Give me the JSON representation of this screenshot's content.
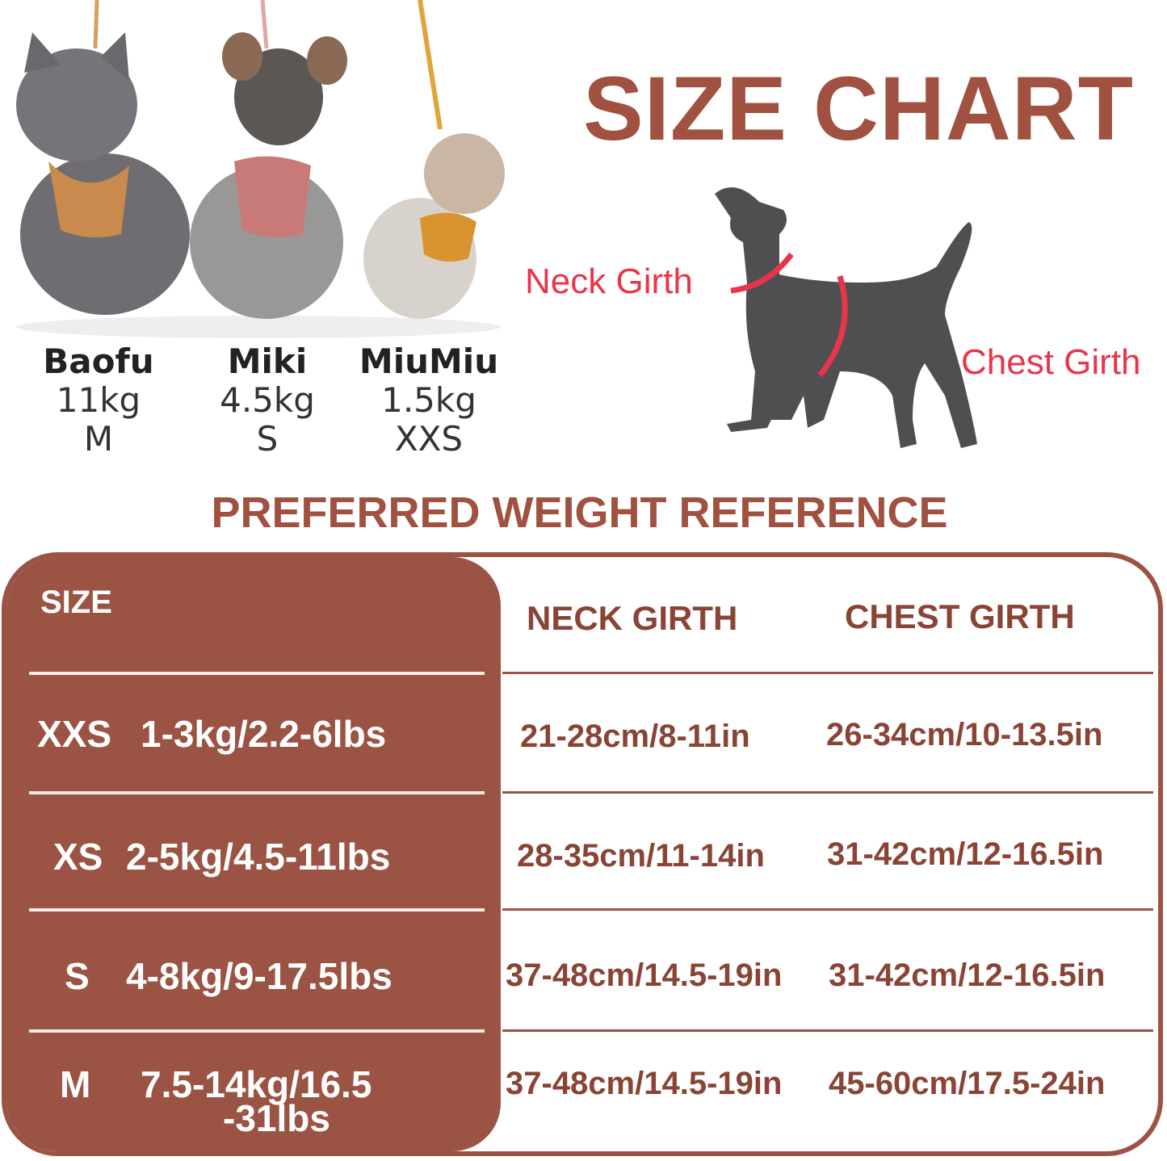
{
  "title": "SIZE CHART",
  "subtitle": "PREFERRED WEIGHT REFERENCE",
  "dogs": [
    {
      "name": "Baofu",
      "weight": "11kg",
      "size": "M",
      "harness_color": "#c98a4e"
    },
    {
      "name": "Miki",
      "weight": "4.5kg",
      "size": "S",
      "harness_color": "#c77a78"
    },
    {
      "name": "MiuMiu",
      "weight": "1.5kg",
      "size": "XXS",
      "harness_color": "#d9932f"
    }
  ],
  "diagram": {
    "neck_label": "Neck Girth",
    "chest_label": "Chest Girth",
    "line_color": "#e8354a"
  },
  "table": {
    "headers": {
      "size": "SIZE",
      "neck": "NECK GIRTH",
      "chest": "CHEST GIRTH"
    },
    "rows": [
      {
        "size": "XXS",
        "weight": "1-3kg/2.2-6lbs",
        "neck": "21-28cm/8-11in",
        "chest": "26-34cm/10-13.5in"
      },
      {
        "size": "XS",
        "weight": "2-5kg/4.5-11lbs",
        "neck": "28-35cm/11-14in",
        "chest": "31-42cm/12-16.5in"
      },
      {
        "size": "S",
        "weight": "4-8kg/9-17.5lbs",
        "neck": "37-48cm/14.5-19in",
        "chest": "31-42cm/12-16.5in"
      },
      {
        "size": "M",
        "weight": "7.5-14kg/16.5",
        "weight_cont": "-31lbs",
        "neck": "37-48cm/14.5-19in",
        "chest": "45-60cm/17.5-24in"
      }
    ]
  },
  "colors": {
    "brand": "#9b5344",
    "title": "#a0513f",
    "accent": "#e8354a"
  }
}
